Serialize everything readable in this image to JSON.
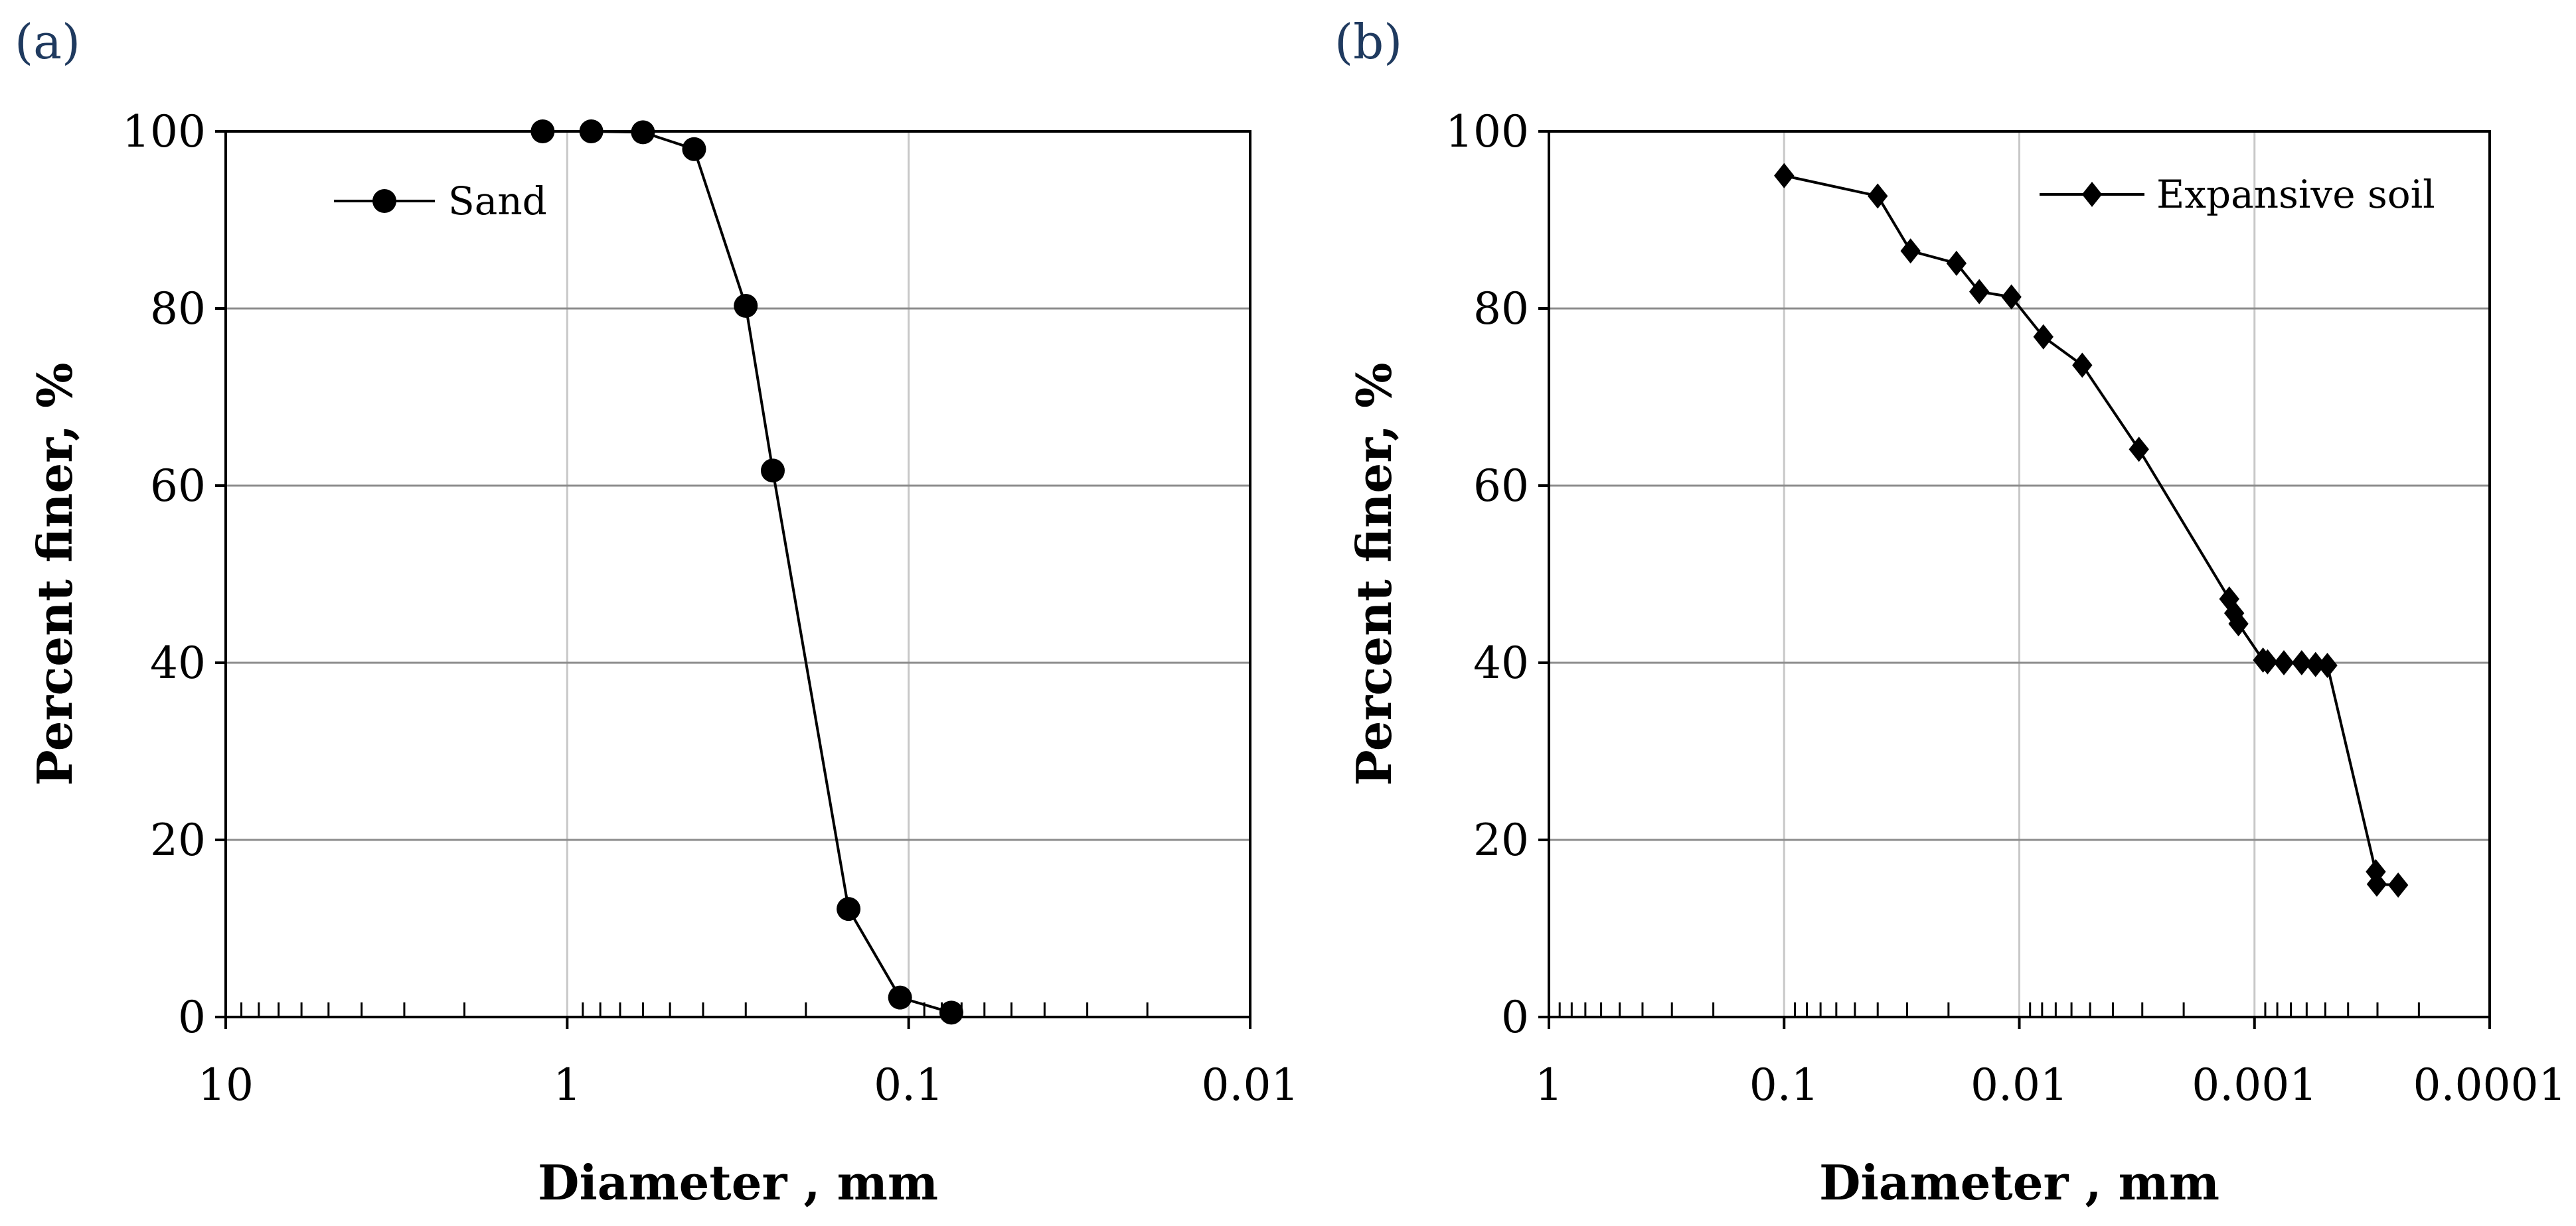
{
  "chart_data": [
    {
      "panel_label": "(a)",
      "type": "line",
      "xscale": "log",
      "xlim": [
        10,
        0.01
      ],
      "x_reversed": true,
      "ylim": [
        0,
        100
      ],
      "xticks": [
        "10",
        "1",
        "0.1",
        "0.01"
      ],
      "yticks": [
        "0",
        "20",
        "40",
        "60",
        "80",
        "100"
      ],
      "xlabel": "Diameter , mm",
      "ylabel": "Percent finer, %",
      "grid": true,
      "legend_position": "top-left",
      "series": [
        {
          "name": "Sand",
          "marker": "circle",
          "x": [
            1.18,
            0.85,
            0.6,
            0.425,
            0.3,
            0.25,
            0.15,
            0.106,
            0.075
          ],
          "y": [
            100,
            100,
            99.9,
            98,
            80.3,
            61.7,
            12.2,
            2.2,
            0.5
          ]
        }
      ]
    },
    {
      "panel_label": "(b)",
      "type": "line",
      "xscale": "log",
      "xlim": [
        1,
        0.0001
      ],
      "x_reversed": true,
      "ylim": [
        0,
        100
      ],
      "xticks": [
        "1",
        "0.1",
        "0.01",
        "0.001",
        "0.0001"
      ],
      "yticks": [
        "0",
        "20",
        "40",
        "60",
        "80",
        "100"
      ],
      "xlabel": "Diameter , mm",
      "ylabel": "Percent finer, %",
      "grid": true,
      "legend_position": "top-right",
      "series": [
        {
          "name": "Expansive soil",
          "marker": "diamond",
          "x": [
            0.1,
            0.04,
            0.029,
            0.0185,
            0.0148,
            0.0108,
            0.0079,
            0.0054,
            0.0031,
            0.00128,
            0.00122,
            0.00117,
            0.00092,
            0.00088,
            0.00075,
            0.00063,
            0.00055,
            0.00049,
            0.000305,
            0.000302,
            0.000245
          ],
          "y": [
            95,
            92.7,
            86.5,
            85.1,
            81.9,
            81.3,
            76.8,
            73.6,
            64.1,
            47.2,
            45.6,
            44.4,
            40.3,
            40.1,
            40,
            40,
            39.8,
            39.7,
            16.4,
            15,
            14.9
          ]
        }
      ]
    }
  ]
}
